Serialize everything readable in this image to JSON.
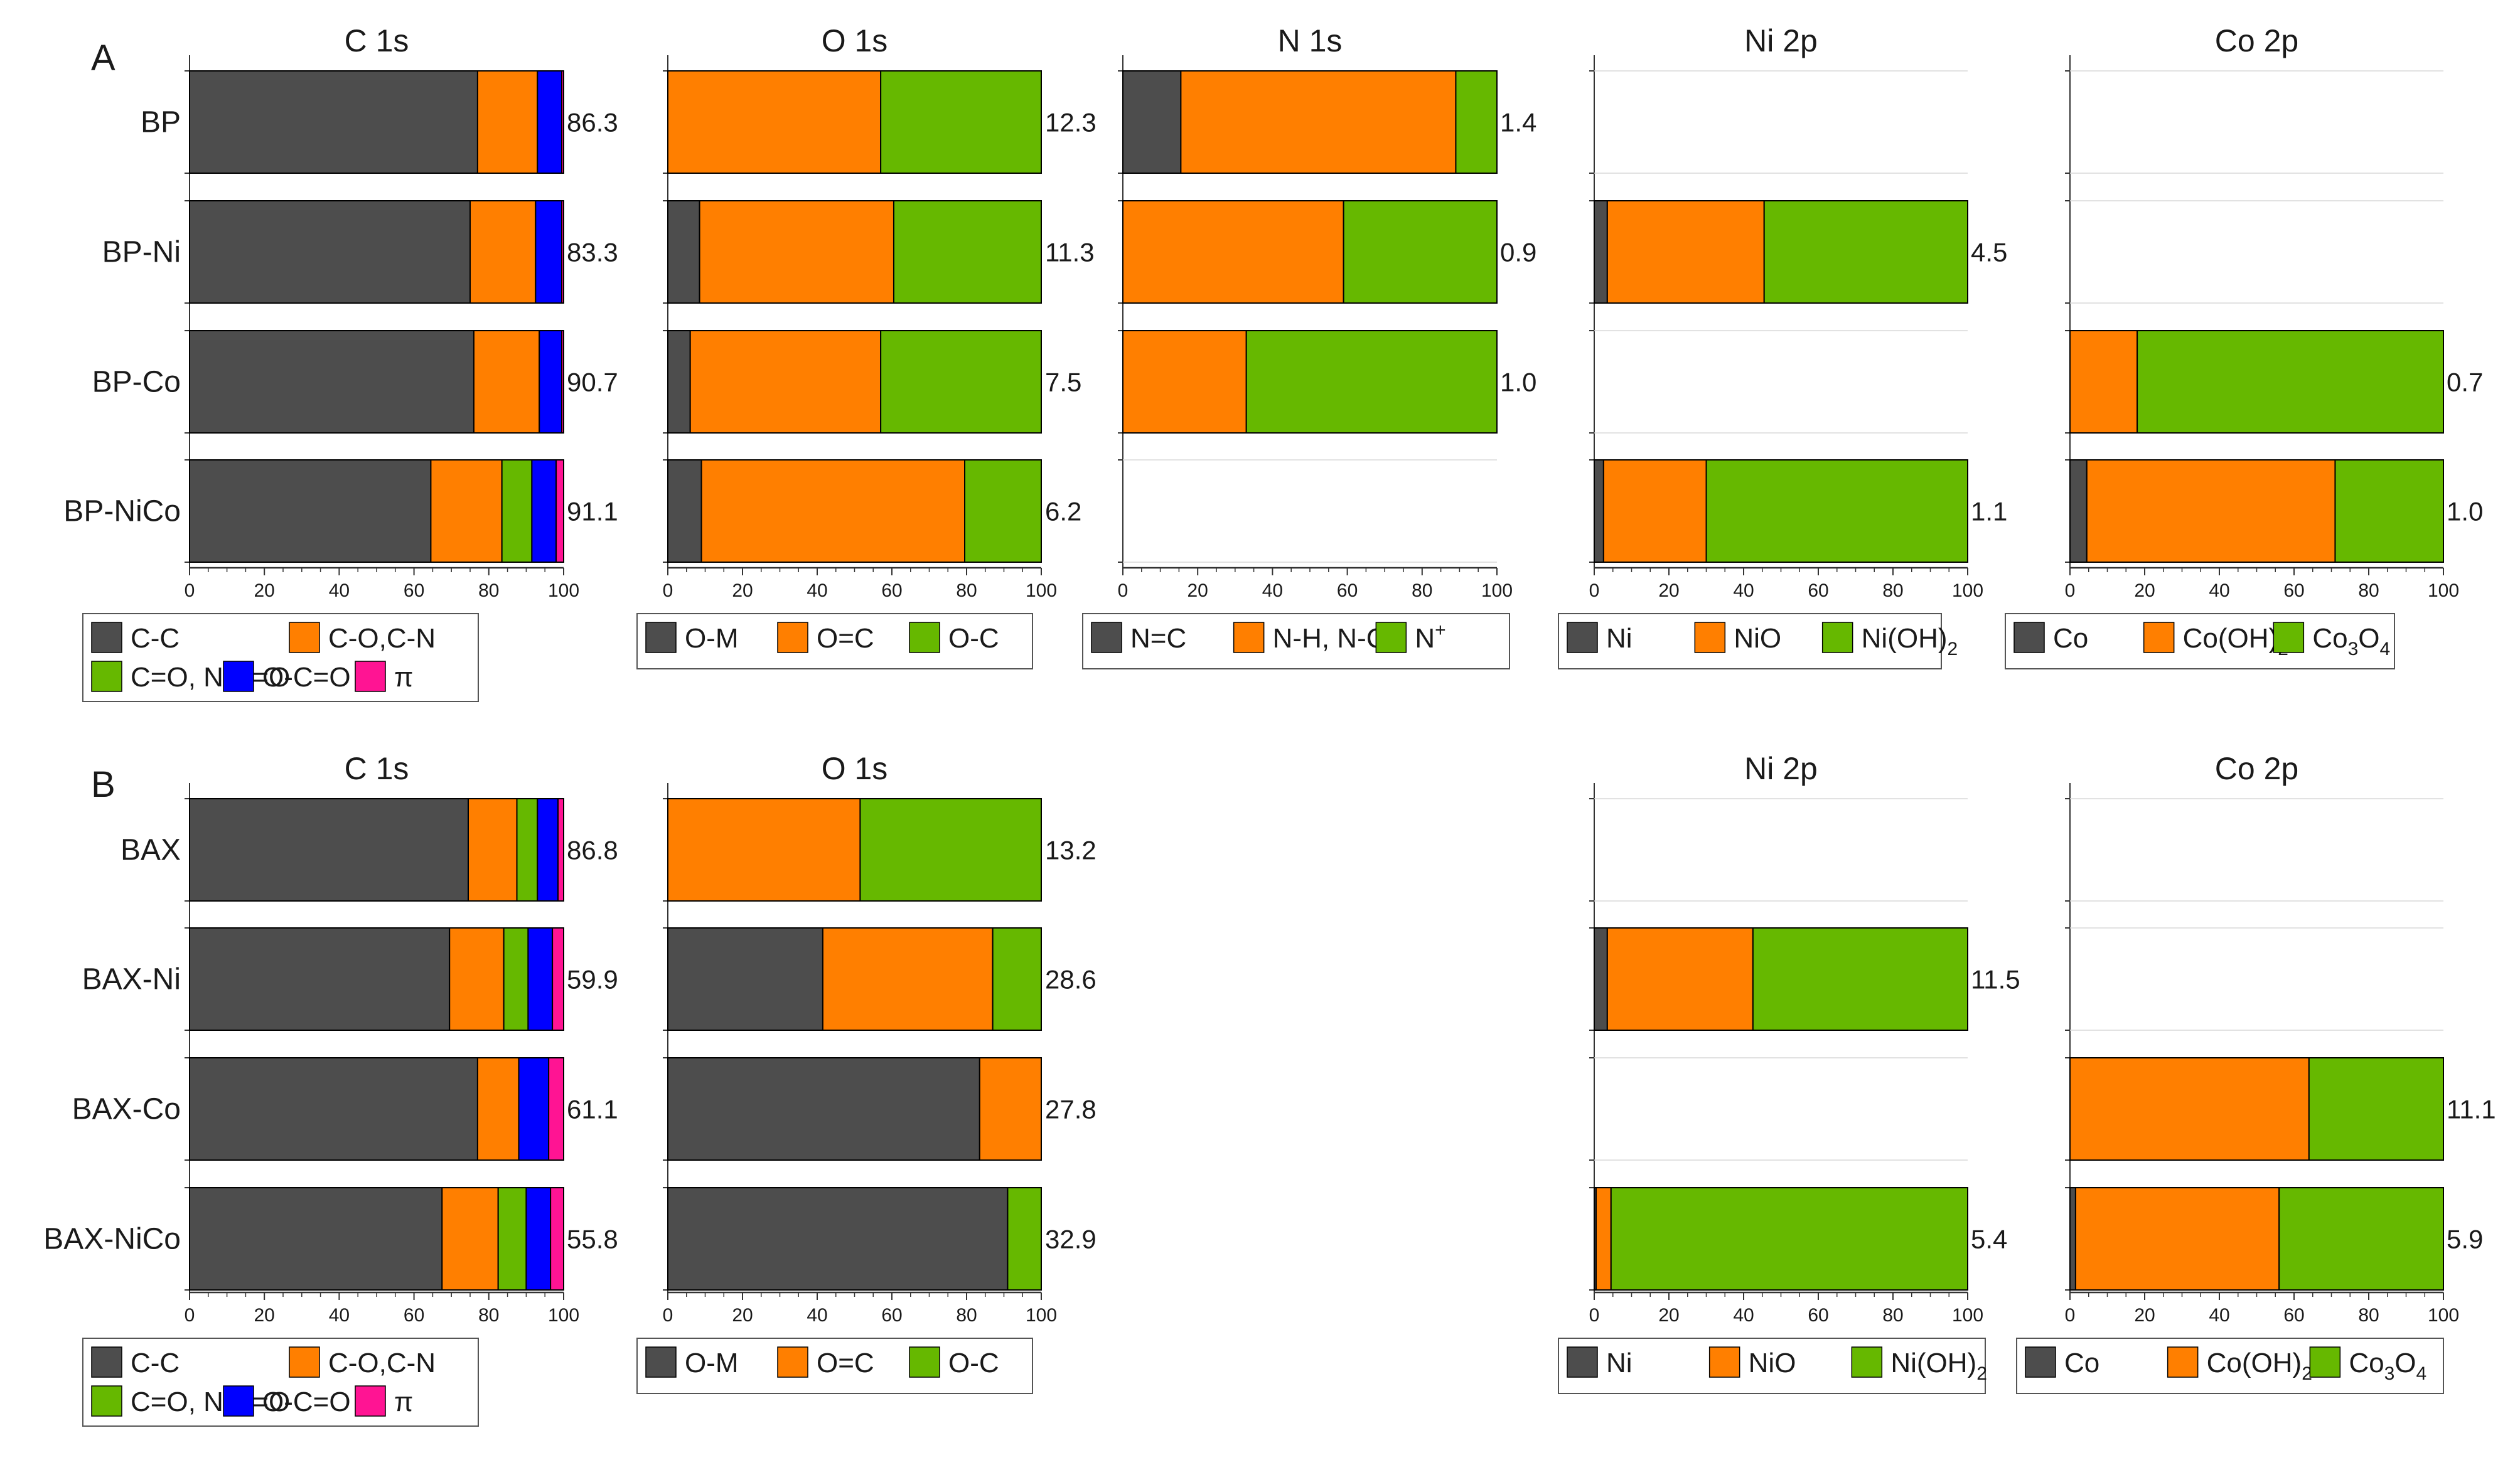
{
  "colors": {
    "gray": "#4d4d4d",
    "orange": "#ff7f00",
    "green": "#66b800",
    "blue": "#0000ff",
    "pink": "#ff1493"
  },
  "chart_data": {
    "type": "bar",
    "orientation": "horizontal-stacked",
    "xlim": [
      0,
      100
    ],
    "xticks": [
      "0",
      "20",
      "40",
      "60",
      "80",
      "100"
    ],
    "sections": [
      {
        "letter": "A",
        "samples": [
          "BP",
          "BP-Ni",
          "BP-Co",
          "BP-NiCo"
        ],
        "panels": [
          {
            "title": "C 1s",
            "legend_rows": [
              [
                {
                  "label": "C-C",
                  "color": "gray"
                },
                {
                  "label": "C-O,C-N",
                  "color": "orange"
                }
              ],
              [
                {
                  "label": "C=O, N-C=O",
                  "color": "green"
                },
                {
                  "label": "O-C=O",
                  "color": "blue"
                },
                {
                  "label": "π",
                  "color": "pink"
                }
              ]
            ],
            "components": [
              "C-C",
              "C-O,C-N",
              "C=O, N-C=O",
              "O-C=O",
              "π"
            ],
            "component_colors": [
              "gray",
              "orange",
              "green",
              "blue",
              "pink"
            ],
            "rows": [
              {
                "values": [
                  77,
                  16,
                  0,
                  6.5,
                  0.5
                ],
                "total": "86.3"
              },
              {
                "values": [
                  75,
                  17.5,
                  0,
                  7,
                  0.5
                ],
                "total": "83.3"
              },
              {
                "values": [
                  76,
                  17.5,
                  0,
                  6,
                  0.5
                ],
                "total": "90.7"
              },
              {
                "values": [
                  64.5,
                  19,
                  8,
                  6.5,
                  2
                ],
                "total": "91.1"
              }
            ]
          },
          {
            "title": "O 1s",
            "legend_rows": [
              [
                {
                  "label": "O-M",
                  "color": "gray"
                },
                {
                  "label": "O=C",
                  "color": "orange"
                },
                {
                  "label": "O-C",
                  "color": "green"
                }
              ]
            ],
            "components": [
              "O-M",
              "O=C",
              "O-C"
            ],
            "component_colors": [
              "gray",
              "orange",
              "green"
            ],
            "rows": [
              {
                "values": [
                  0,
                  57,
                  43
                ],
                "total": "12.3"
              },
              {
                "values": [
                  8.5,
                  52,
                  39.5
                ],
                "total": "11.3"
              },
              {
                "values": [
                  6,
                  51,
                  43
                ],
                "total": "7.5"
              },
              {
                "values": [
                  9,
                  70.5,
                  20.5
                ],
                "total": "6.2"
              }
            ]
          },
          {
            "title": "N 1s",
            "legend_rows": [
              [
                {
                  "label": "N=C",
                  "color": "gray"
                },
                {
                  "label": "N-H, N-C",
                  "color": "orange"
                },
                {
                  "label": "N",
                  "sup": "+",
                  "color": "green"
                }
              ]
            ],
            "components": [
              "N=C",
              "N-H, N-C",
              "N+"
            ],
            "component_colors": [
              "gray",
              "orange",
              "green"
            ],
            "rows": [
              {
                "values": [
                  15.5,
                  73.5,
                  11
                ],
                "total": "1.4"
              },
              {
                "values": [
                  0,
                  59,
                  41
                ],
                "total": "0.9"
              },
              {
                "values": [
                  0,
                  33,
                  67
                ],
                "total": "1.0"
              },
              null
            ]
          },
          {
            "title": "Ni 2p",
            "legend_rows": [
              [
                {
                  "label": "Ni",
                  "color": "gray"
                },
                {
                  "label": "NiO",
                  "color": "orange"
                },
                {
                  "label": "Ni(OH)",
                  "sub": "2",
                  "color": "green"
                }
              ]
            ],
            "components": [
              "Ni",
              "NiO",
              "Ni(OH)2"
            ],
            "component_colors": [
              "gray",
              "orange",
              "green"
            ],
            "rows": [
              null,
              {
                "values": [
                  3.5,
                  42,
                  54.5
                ],
                "total": "4.5"
              },
              null,
              {
                "values": [
                  2.5,
                  27.5,
                  70
                ],
                "total": "1.1"
              }
            ]
          },
          {
            "title": "Co 2p",
            "legend_rows": [
              [
                {
                  "label": "Co",
                  "color": "gray"
                },
                {
                  "label": "Co(OH)",
                  "sub": "2",
                  "color": "orange"
                },
                {
                  "label": "Co",
                  "sub": "3",
                  "label2": "O",
                  "sub2": "4",
                  "color": "green"
                }
              ]
            ],
            "components": [
              "Co",
              "Co(OH)2",
              "Co3O4"
            ],
            "component_colors": [
              "gray",
              "orange",
              "green"
            ],
            "rows": [
              null,
              null,
              {
                "values": [
                  0,
                  18,
                  82
                ],
                "total": "0.7"
              },
              {
                "values": [
                  4.5,
                  66.5,
                  29
                ],
                "total": "1.0"
              }
            ]
          }
        ]
      },
      {
        "letter": "B",
        "samples": [
          "BAX",
          "BAX-Ni",
          "BAX-Co",
          "BAX-NiCo"
        ],
        "panels": [
          {
            "title": "C 1s",
            "legend_rows": [
              [
                {
                  "label": "C-C",
                  "color": "gray"
                },
                {
                  "label": "C-O,C-N",
                  "color": "orange"
                }
              ],
              [
                {
                  "label": "C=O, N-C=O",
                  "color": "green"
                },
                {
                  "label": "O-C=O",
                  "color": "blue"
                },
                {
                  "label": "π",
                  "color": "pink"
                }
              ]
            ],
            "components": [
              "C-C",
              "C-O,C-N",
              "C=O, N-C=O",
              "O-C=O",
              "π"
            ],
            "component_colors": [
              "gray",
              "orange",
              "green",
              "blue",
              "pink"
            ],
            "rows": [
              {
                "values": [
                  74.5,
                  13,
                  5.5,
                  5.5,
                  1.5
                ],
                "total": "86.8"
              },
              {
                "values": [
                  69.5,
                  14.5,
                  6.5,
                  6.5,
                  3
                ],
                "total": "59.9"
              },
              {
                "values": [
                  77,
                  11,
                  0,
                  8,
                  4
                ],
                "total": "61.1"
              },
              {
                "values": [
                  67.5,
                  15,
                  7.5,
                  6.5,
                  3.5
                ],
                "total": "55.8"
              }
            ]
          },
          {
            "title": "O 1s",
            "legend_rows": [
              [
                {
                  "label": "O-M",
                  "color": "gray"
                },
                {
                  "label": "O=C",
                  "color": "orange"
                },
                {
                  "label": "O-C",
                  "color": "green"
                }
              ]
            ],
            "components": [
              "O-M",
              "O=C",
              "O-C"
            ],
            "component_colors": [
              "gray",
              "orange",
              "green"
            ],
            "rows": [
              {
                "values": [
                  0,
                  51.5,
                  48.5
                ],
                "total": "13.2"
              },
              {
                "values": [
                  41.5,
                  45.5,
                  13
                ],
                "total": "28.6"
              },
              {
                "values": [
                  83.5,
                  16.5,
                  0
                ],
                "total": "27.8"
              },
              {
                "values": [
                  91,
                  0,
                  9
                ],
                "total": "32.9"
              }
            ]
          },
          null,
          {
            "title": "Ni 2p",
            "legend_rows": [
              [
                {
                  "label": "Ni",
                  "color": "gray"
                },
                {
                  "label": "NiO",
                  "color": "orange"
                },
                {
                  "label": "Ni(OH)",
                  "sub": "2",
                  "color": "green"
                }
              ]
            ],
            "components": [
              "Ni",
              "NiO",
              "Ni(OH)2"
            ],
            "component_colors": [
              "gray",
              "orange",
              "green"
            ],
            "rows": [
              null,
              {
                "values": [
                  3.5,
                  39,
                  57.5
                ],
                "total": "11.5"
              },
              null,
              {
                "values": [
                  0.5,
                  4,
                  95.5
                ],
                "total": "5.4"
              }
            ]
          },
          {
            "title": "Co 2p",
            "legend_rows": [
              [
                {
                  "label": "Co",
                  "color": "gray"
                },
                {
                  "label": "Co(OH)",
                  "sub": "2",
                  "color": "orange"
                },
                {
                  "label": "Co",
                  "sub": "3",
                  "label2": "O",
                  "sub2": "4",
                  "color": "green"
                }
              ]
            ],
            "components": [
              "Co",
              "Co(OH)2",
              "Co3O4"
            ],
            "component_colors": [
              "gray",
              "orange",
              "green"
            ],
            "rows": [
              null,
              null,
              {
                "values": [
                  0,
                  64,
                  36
                ],
                "total": "11.1"
              },
              {
                "values": [
                  1.5,
                  54.5,
                  44
                ],
                "total": "5.9"
              }
            ]
          }
        ]
      }
    ]
  }
}
